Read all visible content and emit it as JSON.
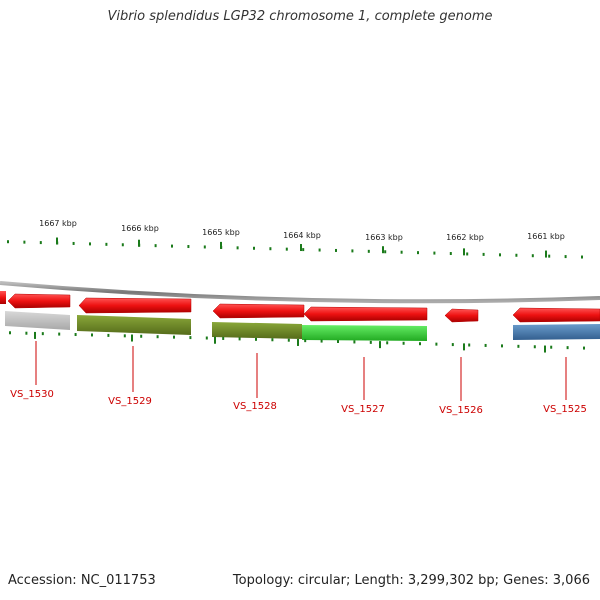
{
  "title": "Vibrio splendidus LGP32 chromosome 1, complete genome",
  "accession_label": "Accession: NC_011753",
  "summary_label": "Topology: circular; Length: 3,299,302 bp; Genes: 3,066",
  "scale": {
    "kbp_labels": [
      "1667 kbp",
      "1666 kbp",
      "1665 kbp",
      "1664 kbp",
      "1663 kbp",
      "1662 kbp",
      "1661 kbp"
    ]
  },
  "colors": {
    "tick": "#1a7a1a",
    "backbone": "#888888",
    "cds": "#ee1111",
    "label": "#cc0000"
  },
  "genes": [
    {
      "name": "VS_1530",
      "strand": "reverse",
      "cog_color": "#b8b8b8"
    },
    {
      "name": "VS_1529",
      "strand": "reverse",
      "cog_color": "#6b8e23"
    },
    {
      "name": "VS_1528",
      "strand": "reverse",
      "cog_color": "#6b8e23"
    },
    {
      "name": "VS_1527",
      "strand": "reverse",
      "cog_color": "#33cc33"
    },
    {
      "name": "VS_1526",
      "strand": "reverse",
      "cog_color": null
    },
    {
      "name": "VS_1525",
      "strand": "reverse",
      "cog_color": "#4477aa"
    }
  ]
}
